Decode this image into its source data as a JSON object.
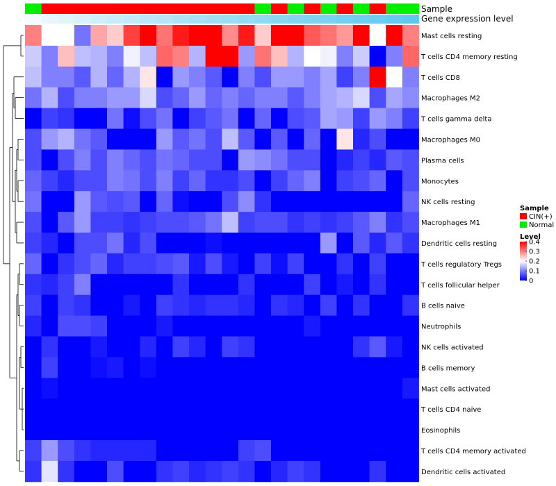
{
  "chart_data": {
    "type": "heatmap",
    "title": "",
    "annotation_tracks": [
      {
        "name": "Sample",
        "values": [
          "Normal",
          "CIN(+)",
          "CIN(+)",
          "CIN(+)",
          "CIN(+)",
          "CIN(+)",
          "CIN(+)",
          "CIN(+)",
          "CIN(+)",
          "CIN(+)",
          "CIN(+)",
          "CIN(+)",
          "CIN(+)",
          "CIN(+)",
          "Normal",
          "CIN(+)",
          "Normal",
          "CIN(+)",
          "Normal",
          "CIN(+)",
          "Normal",
          "CIN(+)",
          "Normal",
          "Normal"
        ]
      },
      {
        "name": "Gene expression level"
      }
    ],
    "rows": [
      "Mast cells resting",
      "T cells CD4 memory resting",
      "T cells CD8",
      "Macrophages M2",
      "T cells gamma delta",
      "Macrophages M0",
      "Plasma cells",
      "Monocytes",
      "NK cells resting",
      "Macrophages M1",
      "Dendritic cells resting",
      "T cells regulatory  Tregs",
      "T cells follicular helper",
      "B cells naive",
      "Neutrophils",
      "NK cells activated",
      "B cells memory",
      "Mast cells activated",
      "T cells CD4 naive",
      "Eosinophils",
      "T cells CD4 memory activated",
      "Dendritic cells activated"
    ],
    "values": [
      [
        0.3,
        0.2,
        0.2,
        0.09,
        0.27,
        0.24,
        0.35,
        0.4,
        0.31,
        0.38,
        0.4,
        0.4,
        0.29,
        0.38,
        0.24,
        0.4,
        0.4,
        0.33,
        0.31,
        0.28,
        0.4,
        0.2,
        0.4,
        0.3
      ],
      [
        0.16,
        0.1,
        0.25,
        0.15,
        0.14,
        0.1,
        0.19,
        0.15,
        0.32,
        0.3,
        0.14,
        0.4,
        0.4,
        0.12,
        0.31,
        0.25,
        0.14,
        0.2,
        0.19,
        0.1,
        0.16,
        0.0,
        0.1,
        0.32
      ],
      [
        0.15,
        0.1,
        0.1,
        0.07,
        0.14,
        0.08,
        0.14,
        0.22,
        0.0,
        0.12,
        0.1,
        0.07,
        0.0,
        0.1,
        0.06,
        0.12,
        0.12,
        0.1,
        0.13,
        0.05,
        0.1,
        0.4,
        0.2,
        0.1
      ],
      [
        0.09,
        0.14,
        0.06,
        0.1,
        0.1,
        0.12,
        0.12,
        0.17,
        0.06,
        0.08,
        0.12,
        0.08,
        0.1,
        0.08,
        0.1,
        0.1,
        0.07,
        0.1,
        0.13,
        0.14,
        0.17,
        0.06,
        0.13,
        0.11
      ],
      [
        0.0,
        0.05,
        0.04,
        0.0,
        0.0,
        0.09,
        0.01,
        0.06,
        0.09,
        0.0,
        0.05,
        0.07,
        0.09,
        0.0,
        0.08,
        0.0,
        0.06,
        0.07,
        0.13,
        0.12,
        0.05,
        0.12,
        0.1,
        0.05
      ],
      [
        0.06,
        0.12,
        0.14,
        0.09,
        0.07,
        0.0,
        0.0,
        0.0,
        0.12,
        0.07,
        0.09,
        0.06,
        0.15,
        0.07,
        0.0,
        0.07,
        0.0,
        0.08,
        0.0,
        0.22,
        0.03,
        0.06,
        0.0,
        0.0
      ],
      [
        0.06,
        0.0,
        0.06,
        0.1,
        0.06,
        0.1,
        0.08,
        0.06,
        0.09,
        0.08,
        0.06,
        0.06,
        0.0,
        0.12,
        0.11,
        0.09,
        0.06,
        0.06,
        0.0,
        0.03,
        0.05,
        0.03,
        0.07,
        0.06
      ],
      [
        0.08,
        0.05,
        0.03,
        0.06,
        0.06,
        0.1,
        0.09,
        0.06,
        0.1,
        0.05,
        0.08,
        0.04,
        0.04,
        0.06,
        0.0,
        0.05,
        0.08,
        0.1,
        0.0,
        0.05,
        0.06,
        0.08,
        0.0,
        0.06
      ],
      [
        0.09,
        0.0,
        0.0,
        0.12,
        0.07,
        0.06,
        0.07,
        0.0,
        0.08,
        0.01,
        0.0,
        0.0,
        0.06,
        0.11,
        0.04,
        0.0,
        0.0,
        0.0,
        0.0,
        0.0,
        0.0,
        0.0,
        0.0,
        0.08
      ],
      [
        0.06,
        0.0,
        0.07,
        0.12,
        0.05,
        0.05,
        0.04,
        0.05,
        0.06,
        0.06,
        0.07,
        0.09,
        0.15,
        0.05,
        0.06,
        0.06,
        0.04,
        0.05,
        0.04,
        0.05,
        0.07,
        0.1,
        0.04,
        0.06
      ],
      [
        0.05,
        0.03,
        0.0,
        0.06,
        0.06,
        0.09,
        0.03,
        0.06,
        0.0,
        0.0,
        0.0,
        0.01,
        0.0,
        0.0,
        0.0,
        0.0,
        0.0,
        0.0,
        0.12,
        0.0,
        0.07,
        0.03,
        0.07,
        0.04
      ],
      [
        0.08,
        0.0,
        0.04,
        0.06,
        0.08,
        0.03,
        0.05,
        0.05,
        0.06,
        0.07,
        0.02,
        0.06,
        0.02,
        0.0,
        0.05,
        0.01,
        0.05,
        0.0,
        0.0,
        0.04,
        0.0,
        0.05,
        0.0,
        0.0
      ],
      [
        0.04,
        0.03,
        0.05,
        0.1,
        0.0,
        0.0,
        0.0,
        0.0,
        0.0,
        0.04,
        0.0,
        0.0,
        0.0,
        0.04,
        0.0,
        0.0,
        0.0,
        0.05,
        0.0,
        0.02,
        0.0,
        0.04,
        0.0,
        0.0
      ],
      [
        0.05,
        0.0,
        0.05,
        0.04,
        0.0,
        0.0,
        0.02,
        0.0,
        0.05,
        0.04,
        0.03,
        0.04,
        0.04,
        0.03,
        0.0,
        0.04,
        0.03,
        0.0,
        0.05,
        0.0,
        0.04,
        0.0,
        0.0,
        0.04
      ],
      [
        0.03,
        0.0,
        0.06,
        0.06,
        0.05,
        0.0,
        0.0,
        0.0,
        0.02,
        0.0,
        0.0,
        0.0,
        0.0,
        0.0,
        0.0,
        0.0,
        0.0,
        0.02,
        0.0,
        0.0,
        0.0,
        0.0,
        0.0,
        0.0
      ],
      [
        0.0,
        0.04,
        0.0,
        0.0,
        0.02,
        0.0,
        0.0,
        0.03,
        0.0,
        0.05,
        0.03,
        0.0,
        0.05,
        0.04,
        0.0,
        0.0,
        0.0,
        0.0,
        0.0,
        0.0,
        0.04,
        0.07,
        0.02,
        0.0
      ],
      [
        0.0,
        0.05,
        0.0,
        0.0,
        0.01,
        0.02,
        0.0,
        0.01,
        0.0,
        0.0,
        0.0,
        0.0,
        0.0,
        0.0,
        0.0,
        0.0,
        0.0,
        0.0,
        0.0,
        0.0,
        0.0,
        0.0,
        0.0,
        0.0
      ],
      [
        0.0,
        0.01,
        0.0,
        0.0,
        0.0,
        0.0,
        0.0,
        0.0,
        0.0,
        0.0,
        0.0,
        0.0,
        0.0,
        0.0,
        0.0,
        0.0,
        0.0,
        0.0,
        0.0,
        0.0,
        0.0,
        0.0,
        0.0,
        0.02
      ],
      [
        0.0,
        0.0,
        0.0,
        0.0,
        0.0,
        0.0,
        0.0,
        0.0,
        0.0,
        0.0,
        0.0,
        0.0,
        0.0,
        0.0,
        0.0,
        0.0,
        0.0,
        0.0,
        0.0,
        0.0,
        0.0,
        0.0,
        0.0,
        0.0
      ],
      [
        0.0,
        0.0,
        0.0,
        0.0,
        0.0,
        0.0,
        0.0,
        0.0,
        0.0,
        0.0,
        0.0,
        0.0,
        0.0,
        0.0,
        0.0,
        0.0,
        0.0,
        0.0,
        0.0,
        0.0,
        0.0,
        0.0,
        0.0,
        0.0
      ],
      [
        0.05,
        0.12,
        0.06,
        0.04,
        0.03,
        0.03,
        0.03,
        0.03,
        0.0,
        0.0,
        0.0,
        0.0,
        0.0,
        0.05,
        0.06,
        0.0,
        0.0,
        0.0,
        0.0,
        0.0,
        0.0,
        0.0,
        0.0,
        0.0
      ],
      [
        0.04,
        0.18,
        0.04,
        0.0,
        0.0,
        0.06,
        0.0,
        0.0,
        0.04,
        0.05,
        0.03,
        0.04,
        0.05,
        0.04,
        0.0,
        0.03,
        0.05,
        0.04,
        0.0,
        0.0,
        0.0,
        0.04,
        0.0,
        0.0
      ]
    ],
    "legend_sample": {
      "title": "Sample",
      "entries": [
        {
          "label": "CIN(+)",
          "color": "#ff0000"
        },
        {
          "label": "Normal",
          "color": "#00ee00"
        }
      ]
    },
    "legend_level": {
      "title": "Level",
      "ticks": [
        {
          "label": "0.4",
          "value": 0.4
        },
        {
          "label": "0.3",
          "value": 0.3
        },
        {
          "label": "0.2",
          "value": 0.2
        },
        {
          "label": "0.1",
          "value": 0.1
        },
        {
          "label": "0",
          "value": 0.0
        }
      ],
      "range": [
        0,
        0.4
      ]
    },
    "colors": {
      "low": "#0000ff",
      "mid": "#ffffff",
      "high": "#ff0000",
      "cin": "#ff0000",
      "normal": "#00ee00",
      "gene_low": "#f5fbfe",
      "gene_high": "#5fc8ee"
    },
    "dendrogram": "row clustering (left)"
  }
}
